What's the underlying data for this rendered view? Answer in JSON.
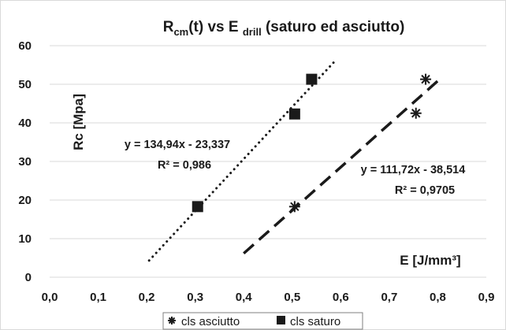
{
  "chart_data": {
    "type": "scatter",
    "title": {
      "main_prefix": "R",
      "main_sub": "cm",
      "main_middle": "(t) vs E ",
      "sub2": "drill",
      "main_suffix": " (saturo ed asciutto)"
    },
    "xlabel": "E [J/mm³]",
    "ylabel": "Rc [Mpa]",
    "xlim": [
      0.0,
      0.9
    ],
    "ylim": [
      0,
      60
    ],
    "x_ticks": [
      "0,0",
      "0,1",
      "0,2",
      "0,3",
      "0,4",
      "0,5",
      "0,6",
      "0,7",
      "0,8",
      "0,9"
    ],
    "y_ticks": [
      "0",
      "10",
      "20",
      "30",
      "40",
      "50",
      "60"
    ],
    "grid": true,
    "legend_position": "bottom",
    "series": [
      {
        "name": "cls asciutto",
        "marker": "asterisk",
        "color": "#1a1a1a",
        "points": [
          {
            "x": 0.505,
            "y": 18.3
          },
          {
            "x": 0.755,
            "y": 42.5
          },
          {
            "x": 0.775,
            "y": 51.3
          }
        ],
        "trendline": {
          "style": "dashed",
          "x_range": [
            0.4,
            0.81
          ],
          "slope": 111.72,
          "intercept": -38.514
        },
        "equation": "y = 111,72x - 38,514",
        "r2": "R² = 0,9705"
      },
      {
        "name": "cls saturo",
        "marker": "square",
        "color": "#1a1a1a",
        "points": [
          {
            "x": 0.305,
            "y": 18.3
          },
          {
            "x": 0.505,
            "y": 42.3
          },
          {
            "x": 0.54,
            "y": 51.3
          }
        ],
        "trendline": {
          "style": "dotted",
          "x_range": [
            0.205,
            0.59
          ],
          "slope": 134.94,
          "intercept": -23.337
        },
        "equation": "y = 134,94x - 23,337",
        "r2": "R² = 0,986"
      }
    ]
  }
}
